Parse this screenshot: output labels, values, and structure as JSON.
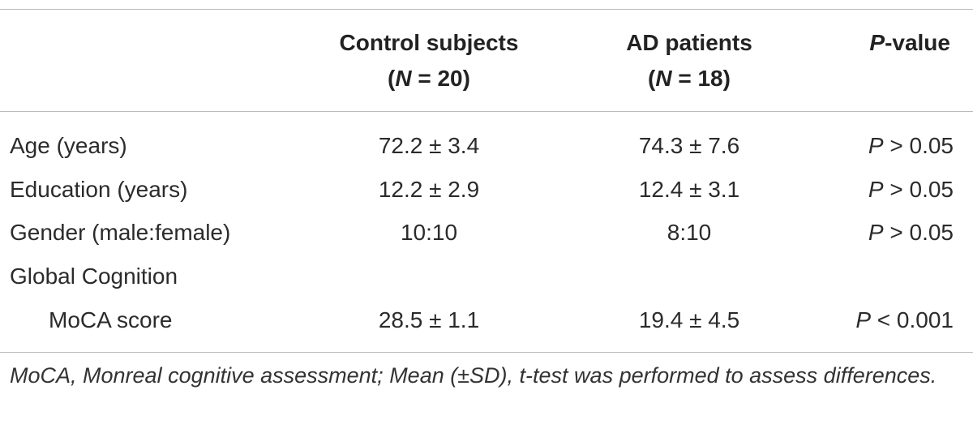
{
  "header": {
    "control_line1": "Control subjects",
    "control_n_label": "N",
    "control_n_value": " = 20)",
    "ad_line1": "AD patients",
    "ad_n_label": "N",
    "ad_n_value": " = 18)",
    "pvalue_italic": "P",
    "pvalue_rest": "-value",
    "paren_open": "("
  },
  "rows": [
    {
      "label": "Age (years)",
      "control": "72.2 ± 3.4",
      "ad": "74.3 ± 7.6",
      "p_sym": "P",
      "p_rest": " > 0.05"
    },
    {
      "label": "Education (years)",
      "control": "12.2 ± 2.9",
      "ad": "12.4 ± 3.1",
      "p_sym": "P",
      "p_rest": " > 0.05"
    },
    {
      "label": "Gender (male:female)",
      "control": "10:10",
      "ad": "8:10",
      "p_sym": "P",
      "p_rest": " > 0.05"
    },
    {
      "label": "Global Cognition",
      "control": "",
      "ad": "",
      "p_sym": "",
      "p_rest": ""
    },
    {
      "label": "MoCA score",
      "control": "28.5 ± 1.1",
      "ad": "19.4 ± 4.5",
      "p_sym": "P",
      "p_rest": " < 0.001"
    }
  ],
  "footnote": "MoCA, Monreal cognitive assessment; Mean (±SD), t-test was performed to assess differences."
}
